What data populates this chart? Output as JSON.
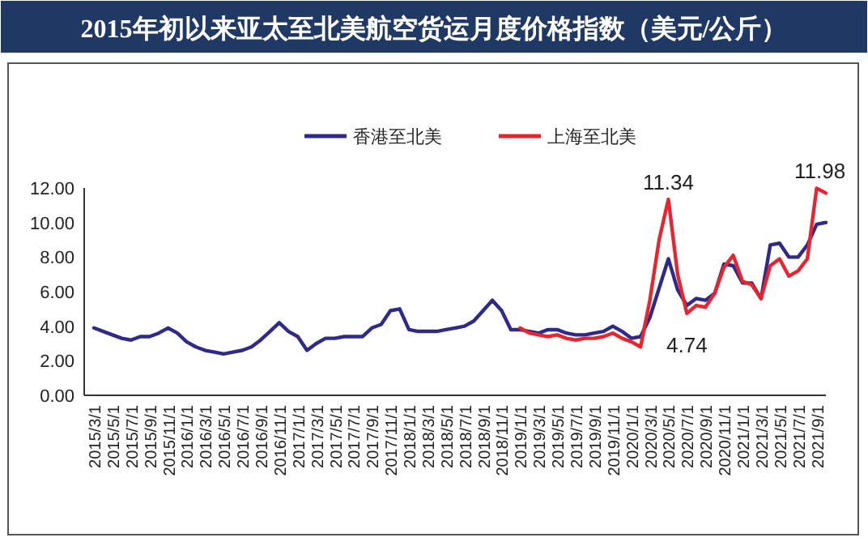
{
  "chart_data": {
    "type": "line",
    "title": "2015年初以来亚太至北美航空货运月度价格指数（美元/公斤）",
    "categories": [
      "2015/3/1",
      null,
      "2015/5/1",
      null,
      "2015/7/1",
      null,
      "2015/9/1",
      null,
      "2015/11/1",
      null,
      "2016/1/1",
      null,
      "2016/3/1",
      null,
      "2016/5/1",
      null,
      "2016/7/1",
      null,
      "2016/9/1",
      null,
      "2016/11/1",
      null,
      "2017/1/1",
      null,
      "2017/3/1",
      null,
      "2017/5/1",
      null,
      "2017/7/1",
      null,
      "2017/9/1",
      null,
      "2017/11/1",
      null,
      "2018/1/1",
      null,
      "2018/3/1",
      null,
      "2018/5/1",
      null,
      "2018/7/1",
      null,
      "2018/9/1",
      null,
      "2018/11/1",
      null,
      "2019/1/1",
      null,
      "2019/3/1",
      null,
      "2019/5/1",
      null,
      "2019/7/1",
      null,
      "2019/9/1",
      null,
      "2019/11/1",
      null,
      "2020/1/1",
      null,
      "2020/3/1",
      null,
      "2020/5/1",
      null,
      "2020/7/1",
      null,
      "2020/9/1",
      null,
      "2020/11/1",
      null,
      "2021/1/1",
      null,
      "2021/3/1",
      null,
      "2021/5/1",
      null,
      "2021/7/1",
      null,
      "2021/9/1",
      null
    ],
    "series": [
      {
        "name": "香港至北美",
        "color": "#2e2a8c",
        "values": [
          3.9,
          3.7,
          3.5,
          3.3,
          3.2,
          3.4,
          3.4,
          3.6,
          3.9,
          3.6,
          3.1,
          2.8,
          2.6,
          2.5,
          2.4,
          2.5,
          2.6,
          2.8,
          3.2,
          3.7,
          4.2,
          3.7,
          3.4,
          2.6,
          3.0,
          3.3,
          3.3,
          3.4,
          3.4,
          3.4,
          3.9,
          4.1,
          4.9,
          5.0,
          3.8,
          3.7,
          3.7,
          3.7,
          3.8,
          3.9,
          4.0,
          4.3,
          4.9,
          5.5,
          4.9,
          3.8,
          3.8,
          3.7,
          3.6,
          3.8,
          3.8,
          3.6,
          3.5,
          3.5,
          3.6,
          3.7,
          4.0,
          3.7,
          3.3,
          3.4,
          4.5,
          6.2,
          7.9,
          6.1,
          5.2,
          5.6,
          5.5,
          5.9,
          7.6,
          7.5,
          6.5,
          6.5,
          5.6,
          8.7,
          8.8,
          8.0,
          8.0,
          8.7,
          9.9,
          10.0
        ]
      },
      {
        "name": "上海至北美",
        "color": "#e8252e",
        "values": [
          null,
          null,
          null,
          null,
          null,
          null,
          null,
          null,
          null,
          null,
          null,
          null,
          null,
          null,
          null,
          null,
          null,
          null,
          null,
          null,
          null,
          null,
          null,
          null,
          null,
          null,
          null,
          null,
          null,
          null,
          null,
          null,
          null,
          null,
          null,
          null,
          null,
          null,
          null,
          null,
          null,
          null,
          null,
          null,
          null,
          null,
          3.9,
          3.6,
          3.5,
          3.4,
          3.5,
          3.3,
          3.2,
          3.3,
          3.3,
          3.4,
          3.6,
          3.3,
          3.1,
          2.8,
          5.5,
          9.0,
          11.34,
          7.0,
          4.74,
          5.2,
          5.1,
          5.9,
          7.4,
          8.1,
          6.6,
          6.4,
          5.6,
          7.5,
          7.9,
          6.9,
          7.2,
          7.9,
          11.98,
          11.7
        ]
      }
    ],
    "ylim": [
      0,
      12
    ],
    "yticks": [
      {
        "value": 0,
        "label": "0.00"
      },
      {
        "value": 2,
        "label": "2.00"
      },
      {
        "value": 4,
        "label": "4.00"
      },
      {
        "value": 6,
        "label": "6.00"
      },
      {
        "value": 8,
        "label": "8.00"
      },
      {
        "value": 10,
        "label": "10.00"
      },
      {
        "value": 12,
        "label": "12.00"
      }
    ],
    "annotations": [
      {
        "text": "11.34",
        "x": "2020/5/1",
        "y": 11.34
      },
      {
        "text": "4.74",
        "x": "2020/7/1",
        "y": 4.74
      },
      {
        "text": "11.98",
        "x": "2021/9/1",
        "y": 11.98
      }
    ],
    "legend": "top",
    "grid": false
  }
}
